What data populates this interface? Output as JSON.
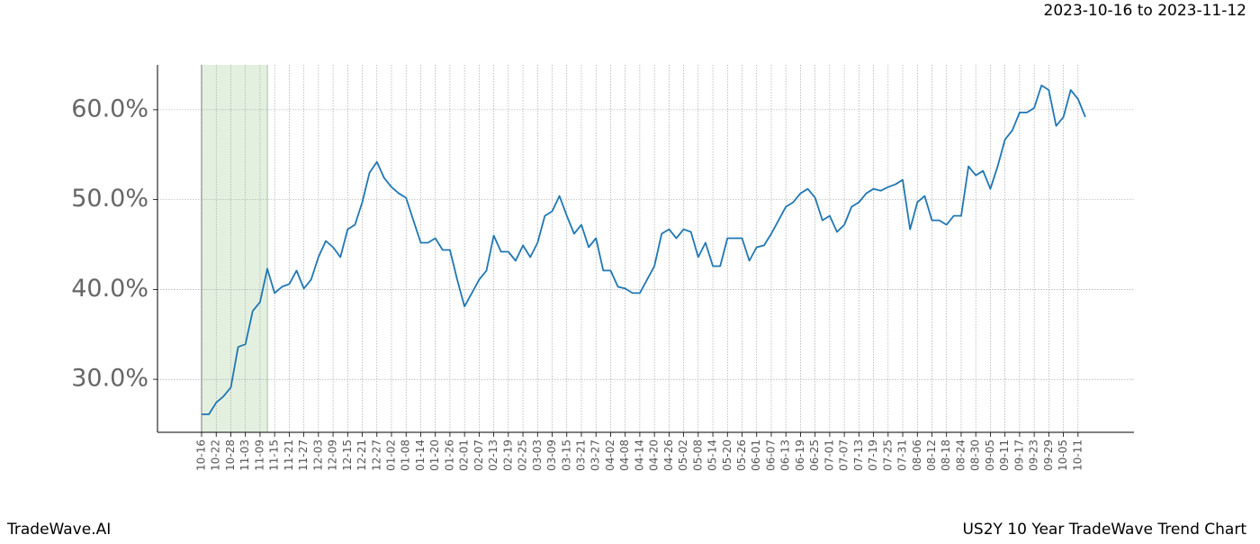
{
  "chart_data": {
    "type": "line",
    "title": "US2Y 10 Year TradeWave Trend Chart",
    "date_range": "2023-10-16 to 2023-11-12",
    "brand": "TradeWave.AI",
    "categories": [
      "10-16",
      null,
      "10-22",
      null,
      "10-28",
      null,
      "11-03",
      null,
      "11-09",
      null,
      "11-15",
      null,
      "11-21",
      null,
      "11-27",
      null,
      "12-03",
      null,
      "12-09",
      null,
      "12-15",
      null,
      "12-21",
      null,
      "12-27",
      null,
      "01-02",
      null,
      "01-08",
      null,
      "01-14",
      null,
      "01-20",
      null,
      "01-26",
      null,
      "02-01",
      null,
      "02-07",
      null,
      "02-13",
      null,
      "02-19",
      null,
      "02-25",
      null,
      "03-03",
      null,
      "03-09",
      null,
      "03-15",
      null,
      "03-21",
      null,
      "03-27",
      null,
      "04-02",
      null,
      "04-08",
      null,
      "04-14",
      null,
      "04-20",
      null,
      "04-26",
      null,
      "05-02",
      null,
      "05-08",
      null,
      "05-14",
      null,
      "05-20",
      null,
      "05-26",
      null,
      "06-01",
      null,
      "06-07",
      null,
      "06-13",
      null,
      "06-19",
      null,
      "06-25",
      null,
      "07-01",
      null,
      "07-07",
      null,
      "07-13",
      null,
      "07-19",
      null,
      "07-25",
      null,
      "07-31",
      null,
      "08-06",
      null,
      "08-12",
      null,
      "08-18",
      null,
      "08-24",
      null,
      "08-30",
      null,
      "09-05",
      null,
      "09-11",
      null,
      "09-17",
      null,
      "09-23",
      null,
      "09-29",
      null,
      "10-05",
      null,
      "10-11",
      null
    ],
    "series": [
      {
        "name": "US2Y",
        "color": "#1f77b4",
        "values": [
          26.1,
          26.1,
          27.4,
          28.1,
          29.1,
          33.6,
          33.9,
          37.6,
          38.6,
          42.3,
          39.6,
          40.3,
          40.6,
          42.1,
          40.1,
          41.1,
          43.6,
          45.4,
          44.7,
          43.6,
          46.7,
          47.2,
          49.7,
          53.0,
          54.2,
          52.4,
          51.4,
          50.7,
          50.2,
          47.7,
          45.2,
          45.2,
          45.7,
          44.4,
          44.4,
          41.1,
          38.1,
          39.6,
          41.1,
          42.1,
          46.0,
          44.2,
          44.2,
          43.2,
          44.9,
          43.6,
          45.2,
          48.2,
          48.7,
          50.4,
          48.2,
          46.2,
          47.2,
          44.7,
          45.7,
          42.1,
          42.1,
          40.3,
          40.1,
          39.6,
          39.6,
          41.1,
          42.6,
          46.2,
          46.7,
          45.7,
          46.7,
          46.4,
          43.6,
          45.2,
          42.6,
          42.6,
          45.7,
          45.7,
          45.7,
          43.2,
          44.7,
          44.9,
          46.2,
          47.7,
          49.2,
          49.7,
          50.7,
          51.2,
          50.2,
          47.7,
          48.2,
          46.4,
          47.2,
          49.2,
          49.7,
          50.7,
          51.2,
          51.0,
          51.4,
          51.7,
          52.2,
          46.7,
          49.7,
          50.4,
          47.7,
          47.7,
          47.2,
          48.2,
          48.2,
          53.7,
          52.7,
          53.2,
          51.2,
          53.7,
          56.7,
          57.7,
          59.7,
          59.7,
          60.2,
          62.7,
          62.2,
          58.2,
          59.2,
          62.2,
          61.2,
          59.2
        ]
      }
    ],
    "ylim": [
      24.1,
      65.0
    ],
    "yticks": [
      {
        "value": 30,
        "label": "30.0%"
      },
      {
        "value": 40,
        "label": "40.0%"
      },
      {
        "value": 50,
        "label": "50.0%"
      },
      {
        "value": 60,
        "label": "60.0%"
      }
    ],
    "grid": true
  }
}
